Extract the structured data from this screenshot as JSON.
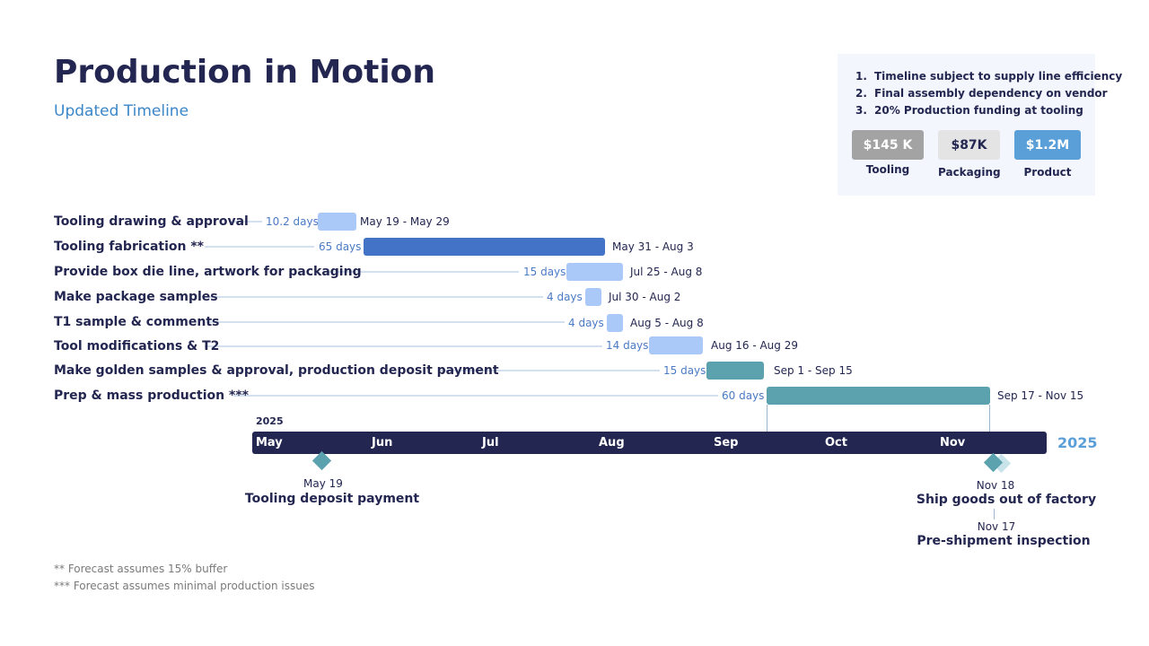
{
  "header": {
    "title": "Production in Motion",
    "subtitle": "Updated Timeline"
  },
  "notes": [
    {
      "num": "1.",
      "text": "Timeline subject to supply line efficiency"
    },
    {
      "num": "2.",
      "text": "Final assembly dependency on vendor"
    },
    {
      "num": "3.",
      "text": "20% Production funding at tooling"
    }
  ],
  "budgets": [
    {
      "value": "$145 K",
      "label": "Tooling"
    },
    {
      "value": "$87K",
      "label": "Packaging"
    },
    {
      "value": "$1.2M",
      "label": "Product"
    }
  ],
  "tasks": [
    {
      "name": "Tooling drawing & approval",
      "duration": "10.2 days",
      "range": "May 19 - May 29",
      "start": "2025-05-19",
      "end": "2025-05-29",
      "color": "#abc9f8"
    },
    {
      "name": "Tooling fabrication **",
      "duration": "65 days",
      "range": "May 31 - Aug 3",
      "start": "2025-05-31",
      "end": "2025-08-03",
      "color": "#4273c6"
    },
    {
      "name": "Provide box die line, artwork for packaging",
      "duration": "15 days",
      "range": "Jul 25 - Aug 8",
      "start": "2025-07-25",
      "end": "2025-08-08",
      "color": "#abc9f8"
    },
    {
      "name": "Make package samples",
      "duration": "4 days",
      "range": "Jul 30 - Aug 2",
      "start": "2025-07-30",
      "end": "2025-08-02",
      "color": "#abc9f8"
    },
    {
      "name": "T1 sample & comments",
      "duration": "4 days",
      "range": "Aug 5 - Aug 8",
      "start": "2025-08-05",
      "end": "2025-08-08",
      "color": "#abc9f8"
    },
    {
      "name": "Tool modifications & T2",
      "duration": "14 days",
      "range": "Aug 16 - Aug 29",
      "start": "2025-08-16",
      "end": "2025-08-29",
      "color": "#abc9f8"
    },
    {
      "name": "Make golden samples & approval, production deposit payment",
      "duration": "15 days",
      "range": "Sep 1 - Sep 15",
      "start": "2025-09-01",
      "end": "2025-09-15",
      "color": "#5ba1ae"
    },
    {
      "name": "Prep & mass production ***",
      "duration": "60 days",
      "range": "Sep 17 - Nov 15",
      "start": "2025-09-17",
      "end": "2025-11-15",
      "color": "#5ba1ae"
    }
  ],
  "timeline": {
    "year_label": "2025",
    "year_end_label": "2025",
    "months": [
      "May",
      "Jun",
      "Jul",
      "Aug",
      "Sep",
      "Oct",
      "Nov"
    ]
  },
  "milestones": [
    {
      "date": "May 19",
      "title": "Tooling deposit payment"
    },
    {
      "date": "Nov 18",
      "title": "Ship goods out of factory"
    },
    {
      "date": "Nov 17",
      "title": "Pre-shipment inspection"
    }
  ],
  "footnotes": [
    "** Forecast assumes 15% buffer",
    "*** Forecast assumes minimal production issues"
  ],
  "colors": {
    "navy": "#232650",
    "accent_blue": "#3b86c8",
    "light_bar": "#abc9f8",
    "dark_bar": "#4273c6",
    "teal": "#5ba1ae",
    "budget_tooling": "#a3a3a3",
    "budget_packaging": "#e4e4e4",
    "budget_product": "#5b9fd8"
  },
  "chart_data": {
    "type": "gantt",
    "categories": [
      "Tooling drawing & approval",
      "Tooling fabrication **",
      "Provide box die line, artwork for packaging",
      "Make package samples",
      "T1 sample & comments",
      "Tool modifications & T2",
      "Make golden samples & approval, production deposit payment",
      "Prep & mass production ***"
    ],
    "starts": [
      "2025-05-19",
      "2025-05-31",
      "2025-07-25",
      "2025-07-30",
      "2025-08-05",
      "2025-08-16",
      "2025-09-01",
      "2025-09-17"
    ],
    "ends": [
      "2025-05-29",
      "2025-08-03",
      "2025-08-08",
      "2025-08-02",
      "2025-08-08",
      "2025-08-29",
      "2025-09-15",
      "2025-11-15"
    ],
    "durations_days": [
      10.2,
      65,
      15,
      4,
      4,
      14,
      15,
      60
    ],
    "milestones": [
      {
        "date": "2025-05-19",
        "label": "Tooling deposit payment"
      },
      {
        "date": "2025-11-17",
        "label": "Pre-shipment inspection"
      },
      {
        "date": "2025-11-18",
        "label": "Ship goods out of factory"
      }
    ],
    "xlim": [
      "2025-05-01",
      "2025-11-30"
    ]
  }
}
